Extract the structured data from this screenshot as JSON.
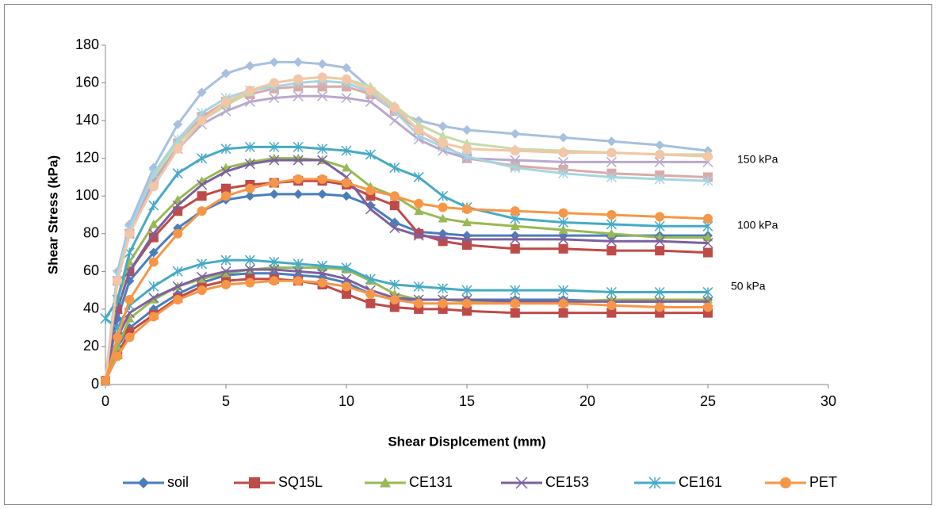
{
  "chart_data": {
    "type": "line",
    "x_label": "Shear Displcement (mm)",
    "y_label": "Shear Stress (kPa)",
    "xlim": [
      0,
      30
    ],
    "xticks": [
      0,
      5,
      10,
      15,
      20,
      25,
      30
    ],
    "ylim": [
      0,
      180
    ],
    "yticks": [
      0,
      20,
      40,
      60,
      80,
      100,
      120,
      140,
      160,
      180
    ],
    "grid": false,
    "legend": "bottom",
    "annotations": [
      "150 kPa",
      "100 kPa",
      "50 kPa"
    ],
    "x": [
      0,
      0.5,
      1,
      2,
      3,
      4,
      5,
      6,
      7,
      8,
      9,
      10,
      11,
      12,
      13,
      14,
      15,
      17,
      19,
      21,
      23,
      25
    ],
    "series": [
      {
        "name": "soil",
        "color": "#4a7ebb",
        "marker": "diamond",
        "curves": [
          {
            "color": "#a7c0de",
            "values": [
              2,
              60,
              85,
              115,
              138,
              155,
              165,
              169,
              171,
              171,
              170,
              168,
              157,
              145,
              140,
              137,
              135,
              133,
              131,
              129,
              127,
              124
            ]
          },
          {
            "color": "#4a7ebb",
            "values": [
              2,
              35,
              55,
              70,
              83,
              92,
              98,
              100,
              101,
              101,
              101,
              100,
              95,
              86,
              81,
              80,
              79,
              79,
              79,
              79,
              79,
              79
            ]
          },
          {
            "color": "#4a7ebb",
            "values": [
              2,
              20,
              30,
              40,
              48,
              54,
              58,
              59,
              59,
              58,
              57,
              54,
              48,
              45,
              45,
              45,
              45,
              45,
              45,
              44,
              44,
              45
            ]
          }
        ]
      },
      {
        "name": "SQ15L",
        "color": "#be4b48",
        "marker": "square",
        "curves": [
          {
            "color": "#dba9a8",
            "values": [
              2,
              55,
              80,
              108,
              128,
              142,
              150,
              154,
              157,
              158,
              158,
              158,
              154,
              145,
              135,
              127,
              120,
              116,
              114,
              112,
              111,
              110
            ]
          },
          {
            "color": "#be4b48",
            "values": [
              2,
              40,
              60,
              78,
              92,
              100,
              104,
              106,
              107,
              108,
              108,
              106,
              100,
              95,
              80,
              76,
              74,
              72,
              72,
              71,
              71,
              70
            ]
          },
          {
            "color": "#be4b48",
            "values": [
              2,
              16,
              28,
              37,
              46,
              52,
              55,
              56,
              56,
              55,
              53,
              48,
              43,
              41,
              40,
              40,
              39,
              38,
              38,
              38,
              38,
              38
            ]
          }
        ]
      },
      {
        "name": "CE131",
        "color": "#98b954",
        "marker": "triangle",
        "curves": [
          {
            "color": "#c6dbaa",
            "values": [
              2,
              55,
              80,
              110,
              128,
              140,
              148,
              155,
              160,
              162,
              163,
              162,
              158,
              148,
              138,
              132,
              128,
              125,
              124,
              123,
              122,
              122
            ]
          },
          {
            "color": "#98b954",
            "values": [
              2,
              45,
              65,
              85,
              98,
              108,
              115,
              118,
              120,
              120,
              119,
              115,
              105,
              100,
              92,
              88,
              86,
              84,
              82,
              80,
              78,
              78
            ]
          },
          {
            "color": "#98b954",
            "values": [
              2,
              20,
              35,
              45,
              52,
              56,
              59,
              61,
              62,
              62,
              62,
              61,
              55,
              48,
              45,
              45,
              44,
              44,
              44,
              45,
              45,
              45
            ]
          }
        ]
      },
      {
        "name": "CE153",
        "color": "#7d60a0",
        "marker": "x",
        "curves": [
          {
            "color": "#b9a9cc",
            "values": [
              2,
              55,
              80,
              108,
              125,
              138,
              145,
              150,
              152,
              153,
              153,
              152,
              150,
              140,
              130,
              124,
              120,
              119,
              118,
              118,
              118,
              118
            ]
          },
          {
            "color": "#7d60a0",
            "values": [
              2,
              40,
              60,
              80,
              95,
              106,
              113,
              117,
              119,
              119,
              119,
              110,
              93,
              83,
              79,
              78,
              77,
              77,
              77,
              76,
              76,
              75
            ]
          },
          {
            "color": "#7d60a0",
            "values": [
              2,
              25,
              38,
              46,
              52,
              57,
              60,
              61,
              61,
              60,
              59,
              56,
              50,
              46,
              45,
              45,
              45,
              44,
              44,
              44,
              44,
              44
            ]
          }
        ]
      },
      {
        "name": "CE161",
        "color": "#46aac5",
        "marker": "star",
        "curves": [
          {
            "color": "#a5d5e2",
            "values": [
              2,
              58,
              82,
              112,
              130,
              144,
              152,
              156,
              158,
              160,
              161,
              160,
              155,
              145,
              132,
              126,
              121,
              115,
              112,
              110,
              109,
              108
            ]
          },
          {
            "color": "#46aac5",
            "values": [
              35,
              45,
              70,
              95,
              112,
              120,
              125,
              126,
              126,
              126,
              125,
              124,
              122,
              115,
              110,
              100,
              94,
              88,
              86,
              85,
              84,
              84
            ]
          },
          {
            "color": "#46aac5",
            "values": [
              35,
              30,
              42,
              52,
              60,
              64,
              66,
              66,
              65,
              64,
              63,
              62,
              56,
              53,
              52,
              51,
              50,
              50,
              50,
              49,
              49,
              49
            ]
          }
        ]
      },
      {
        "name": "PET",
        "color": "#f79646",
        "marker": "circle",
        "curves": [
          {
            "color": "#f3c6a6",
            "values": [
              2,
              55,
              80,
              105,
              125,
              140,
              150,
              156,
              160,
              162,
              163,
              162,
              156,
              147,
              135,
              128,
              125,
              124,
              123,
              123,
              122,
              121
            ]
          },
          {
            "color": "#f79646",
            "values": [
              2,
              25,
              45,
              65,
              80,
              92,
              100,
              104,
              107,
              109,
              109,
              107,
              103,
              100,
              96,
              94,
              93,
              92,
              91,
              90,
              89,
              88
            ]
          },
          {
            "color": "#f79646",
            "values": [
              2,
              15,
              25,
              36,
              45,
              50,
              53,
              54,
              55,
              55,
              54,
              52,
              48,
              45,
              43,
              43,
              43,
              43,
              43,
              42,
              41,
              41
            ]
          }
        ]
      }
    ]
  }
}
